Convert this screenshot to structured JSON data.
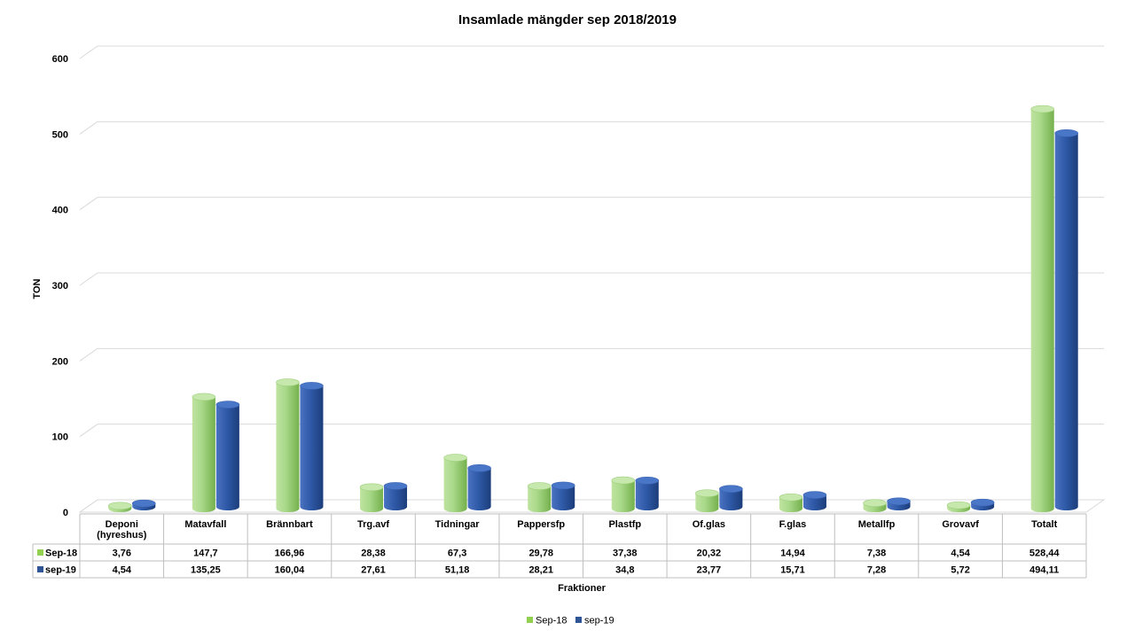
{
  "chart_data": {
    "type": "bar",
    "title": "Insamlade mängder sep 2018/2019",
    "xlabel": "Fraktioner",
    "ylabel": "TON",
    "ylim": [
      0,
      600
    ],
    "yticks": [
      "0",
      "100",
      "200",
      "300",
      "400",
      "500",
      "600"
    ],
    "categories": [
      [
        "Deponi",
        "(hyreshus)"
      ],
      [
        "Matavfall"
      ],
      [
        "Brännbart"
      ],
      [
        "Trg.avf"
      ],
      [
        "Tidningar"
      ],
      [
        "Pappersfp"
      ],
      [
        "Plastfp"
      ],
      [
        "Of.glas"
      ],
      [
        "F.glas"
      ],
      [
        "Metallfp"
      ],
      [
        "Grovavf"
      ],
      [
        "Totalt"
      ]
    ],
    "series": [
      {
        "name": "Sep-18",
        "color": "#92d050",
        "values": [
          3.76,
          147.7,
          166.96,
          28.38,
          67.3,
          29.78,
          37.38,
          20.32,
          14.94,
          7.38,
          4.54,
          528.44
        ],
        "labels": [
          "3,76",
          "147,7",
          "166,96",
          "28,38",
          "67,3",
          "29,78",
          "37,38",
          "20,32",
          "14,94",
          "7,38",
          "4,54",
          "528,44"
        ]
      },
      {
        "name": "sep-19",
        "color": "#2f5597",
        "values": [
          4.54,
          135.25,
          160.04,
          27.61,
          51.18,
          28.21,
          34.8,
          23.77,
          15.71,
          7.28,
          5.72,
          494.11
        ],
        "labels": [
          "4,54",
          "135,25",
          "160,04",
          "27,61",
          "51,18",
          "28,21",
          "34,8",
          "23,77",
          "15,71",
          "7,28",
          "5,72",
          "494,11"
        ]
      }
    ],
    "grid": true,
    "legend": "bottom",
    "data_table": true,
    "style": "3d-cylinder"
  }
}
